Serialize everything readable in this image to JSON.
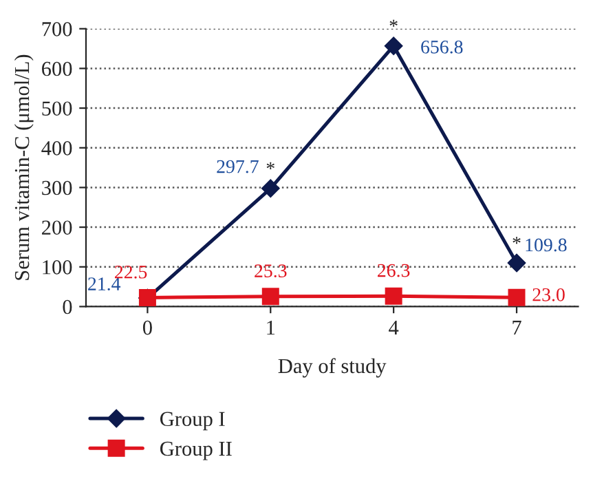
{
  "chart_data": {
    "type": "line",
    "xlabel": "Day of study",
    "ylabel": "Serum vitamin-C (μmol/L)",
    "categories": [
      "0",
      "1",
      "4",
      "7"
    ],
    "series": [
      {
        "name": "Group I",
        "color": "#0d1a4d",
        "values": [
          21.4,
          297.7,
          656.8,
          109.8
        ],
        "marker": "diamond"
      },
      {
        "name": "Group II",
        "color": "#e0141e",
        "values": [
          22.5,
          25.3,
          26.3,
          23.0
        ],
        "value_labels": [
          "22.5",
          "25.3",
          "26.3",
          "23.0"
        ],
        "marker": "square"
      }
    ],
    "ylim": [
      0,
      700
    ],
    "yticks": [
      0,
      100,
      200,
      300,
      400,
      500,
      600,
      700
    ],
    "grid": "y",
    "legend": "bottom",
    "data_labels": true,
    "line_style": "solid",
    "annotations": [
      {
        "text": "*",
        "x": "1",
        "y": 297.7
      },
      {
        "text": "*",
        "x": "4",
        "y": 656.8
      },
      {
        "text": "*",
        "x": "7",
        "y": 109.8
      }
    ]
  }
}
